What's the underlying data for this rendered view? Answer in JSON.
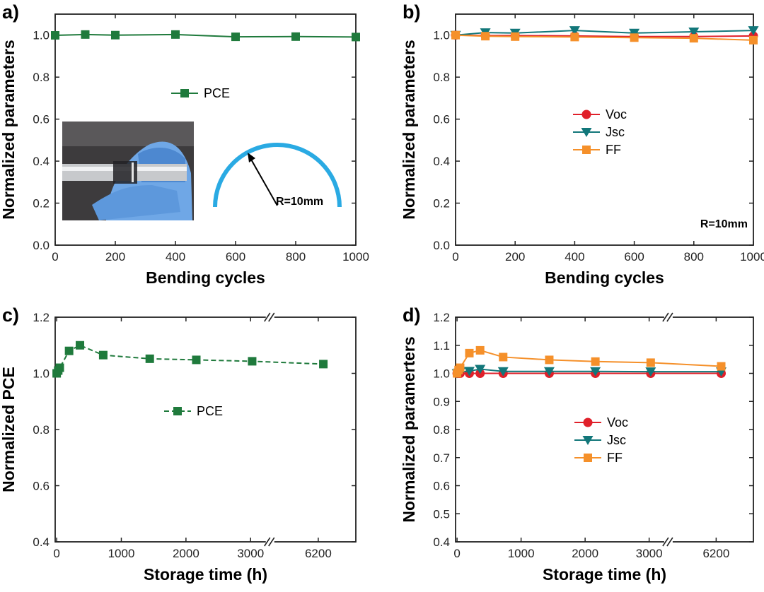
{
  "colors": {
    "pce": "#1f7a3c",
    "voc": "#e0202a",
    "jsc": "#12777a",
    "ff": "#f5902a",
    "arc": "#2aaae3",
    "axis": "#222222"
  },
  "chart_data": [
    {
      "type": "line",
      "panel_label": "a)",
      "xlabel": "Bending cycles",
      "ylabel": "Normalized parameters",
      "xlim": [
        0,
        1000
      ],
      "ylim": [
        0.0,
        1.1
      ],
      "xticks": [
        "0",
        "200",
        "400",
        "600",
        "800",
        "1000"
      ],
      "yticks": [
        "0.0",
        "0.2",
        "0.4",
        "0.6",
        "0.8",
        "1.0"
      ],
      "legend_position": "top-center",
      "series": [
        {
          "name": "PCE",
          "marker": "square",
          "color": "#1f7a3c",
          "x": [
            0,
            100,
            200,
            400,
            600,
            800,
            1000
          ],
          "y": [
            0.999,
            1.003,
            1.0,
            1.003,
            0.992,
            0.993,
            0.991
          ]
        }
      ],
      "inset": {
        "photo": "bent-device-photo",
        "radius_label": "R=10mm"
      }
    },
    {
      "type": "line",
      "panel_label": "b)",
      "xlabel": "Bending cycles",
      "ylabel": "Normalized parameters",
      "xlim": [
        0,
        1000
      ],
      "ylim": [
        0.0,
        1.1
      ],
      "xticks": [
        "0",
        "200",
        "400",
        "600",
        "800",
        "1000"
      ],
      "yticks": [
        "0.0",
        "0.2",
        "0.4",
        "0.6",
        "0.8",
        "1.0"
      ],
      "legend_position": "center-right",
      "annotation": "R=10mm",
      "series": [
        {
          "name": "Voc",
          "marker": "circle",
          "color": "#e0202a",
          "x": [
            0,
            100,
            200,
            400,
            600,
            800,
            1000
          ],
          "y": [
            1.0,
            0.998,
            0.998,
            0.996,
            0.993,
            0.993,
            0.996
          ]
        },
        {
          "name": "Jsc",
          "marker": "triangle-down",
          "color": "#12777a",
          "x": [
            0,
            100,
            200,
            400,
            600,
            800,
            1000
          ],
          "y": [
            1.0,
            1.012,
            1.01,
            1.022,
            1.01,
            1.016,
            1.022
          ]
        },
        {
          "name": "FF",
          "marker": "square",
          "color": "#f5902a",
          "x": [
            0,
            100,
            200,
            400,
            600,
            800,
            1000
          ],
          "y": [
            1.0,
            0.995,
            0.993,
            0.991,
            0.988,
            0.985,
            0.976
          ]
        }
      ]
    },
    {
      "type": "line",
      "panel_label": "c)",
      "xlabel": "Storage time (h)",
      "ylabel": "Normalized PCE",
      "ylim": [
        0.4,
        1.2
      ],
      "xticks": [
        "0",
        "1000",
        "2000",
        "3000",
        "6200"
      ],
      "yticks": [
        "0.4",
        "0.6",
        "0.8",
        "1.0",
        "1.2"
      ],
      "axis_break": true,
      "legend_position": "center",
      "series": [
        {
          "name": "PCE",
          "marker": "square",
          "color": "#1f7a3c",
          "x": [
            0,
            24,
            48,
            192,
            360,
            720,
            1440,
            2160,
            3024,
            6600
          ],
          "y": [
            1.0,
            1.01,
            1.02,
            1.08,
            1.1,
            1.065,
            1.052,
            1.048,
            1.043,
            1.033
          ]
        }
      ]
    },
    {
      "type": "line",
      "panel_label": "d)",
      "xlabel": "Storage time (h)",
      "ylabel": "Normalized paramerters",
      "ylim": [
        0.4,
        1.2
      ],
      "xticks": [
        "0",
        "1000",
        "2000",
        "3000",
        "6200"
      ],
      "yticks": [
        "0.4",
        "0.5",
        "0.6",
        "0.7",
        "0.8",
        "0.9",
        "1.0",
        "1.1",
        "1.2"
      ],
      "axis_break": true,
      "legend_position": "center",
      "series": [
        {
          "name": "Voc",
          "marker": "circle",
          "color": "#e0202a",
          "x": [
            0,
            24,
            48,
            192,
            360,
            720,
            1440,
            2160,
            3024,
            6600
          ],
          "y": [
            1.0,
            1.0,
            1.0,
            1.0,
            1.0,
            1.0,
            1.0,
            1.0,
            1.0,
            1.0
          ]
        },
        {
          "name": "Jsc",
          "marker": "triangle-down",
          "color": "#12777a",
          "x": [
            0,
            24,
            48,
            192,
            360,
            720,
            1440,
            2160,
            3024,
            6600
          ],
          "y": [
            1.0,
            1.002,
            1.005,
            1.008,
            1.015,
            1.007,
            1.007,
            1.007,
            1.006,
            1.006
          ]
        },
        {
          "name": "FF",
          "marker": "square",
          "color": "#f5902a",
          "x": [
            0,
            24,
            48,
            192,
            360,
            720,
            1440,
            2160,
            3024,
            6600
          ],
          "y": [
            1.0,
            1.012,
            1.02,
            1.072,
            1.082,
            1.058,
            1.048,
            1.042,
            1.038,
            1.025
          ]
        }
      ]
    }
  ]
}
